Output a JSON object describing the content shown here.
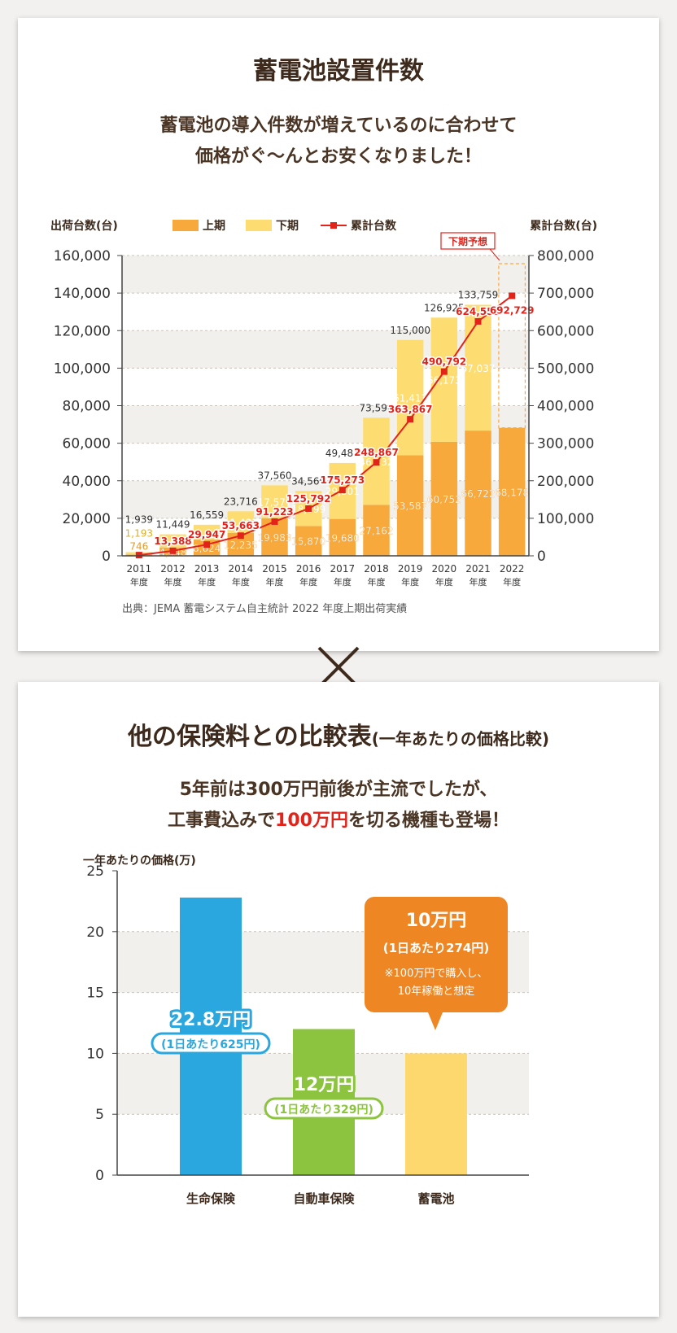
{
  "section1": {
    "title": "蓄電池設置件数",
    "subtitle_line1": "蓄電池の導入件数が増えているのに合わせて",
    "subtitle_line2": "価格がぐ〜んとお安くなりました！",
    "source": "出典：JEMA 蓄電システム自主統計 2022 年度上期出荷実績"
  },
  "section2": {
    "title": "他の保険料との比較表",
    "title_suffix": "(一年あたりの価格比較)",
    "subtitle_line1": "5年前は300万円前後が主流でしたが、",
    "subtitle_line2_pre": "工事費込みで",
    "subtitle_line2_highlight": "100万円",
    "subtitle_line2_post": "を切る機種も登場！",
    "callout_title": "10万円",
    "callout_sub": "(1日あたり274円)",
    "callout_note1": "※100万円で購入し、",
    "callout_note2": "10年稼働と想定"
  },
  "colors": {
    "first_half": "#f8a93c",
    "second_half": "#fddc72",
    "cumulative": "#e2231a",
    "insurance_life": "#2aa7de",
    "insurance_car": "#8cc43f",
    "battery": "#fdd86f",
    "callout": "#ef8624",
    "title_brown": "#3d2a1c"
  },
  "chart_data": [
    {
      "type": "bar",
      "stacked": true,
      "ylabel": "出荷台数(台)",
      "y2label": "累計台数(台)",
      "ylim": [
        0,
        160000
      ],
      "y2lim": [
        0,
        800000
      ],
      "yticks": [
        "160,000",
        "140,000",
        "120,000",
        "100,000",
        "80,000",
        "60,000",
        "40,000",
        "20,000",
        "0"
      ],
      "y2ticks": [
        "800,000",
        "700,000",
        "600,000",
        "500,000",
        "400,000",
        "300,000",
        "200,000",
        "100,000",
        "0"
      ],
      "legend": {
        "first": "上期",
        "second": "下期",
        "cumulative": "累計台数"
      },
      "forecast_label": "下期予想",
      "categories": [
        "2011",
        "2012",
        "2013",
        "2014",
        "2015",
        "2016",
        "2017",
        "2018",
        "2019",
        "2020",
        "2021",
        "2022"
      ],
      "category_suffix": "年度",
      "first_half": [
        746,
        4448,
        8624,
        12235,
        19983,
        15870,
        19680,
        27162,
        53587,
        60752,
        66722,
        68178
      ],
      "first_half_labels": [
        "746",
        "4,448",
        "8,624",
        "12,235",
        "19,983",
        "15,870",
        "19,680",
        "27,162",
        "53,587",
        "60,752",
        "66,722",
        "68,178"
      ],
      "second_half": [
        1193,
        7001,
        7935,
        11481,
        17577,
        18699,
        29801,
        46432,
        61413,
        66173,
        67037,
        null
      ],
      "second_half_labels": [
        "1,193",
        "7,001",
        "7,935",
        "11,481",
        "17,577",
        "18,699",
        "29,801",
        "46,432",
        "61,413",
        "66,173",
        "67,037",
        ""
      ],
      "totals": [
        1939,
        11449,
        16559,
        23716,
        37560,
        34569,
        49481,
        73594,
        115000,
        126925,
        133759,
        null
      ],
      "total_labels": [
        "1,939",
        "11,449",
        "16,559",
        "23,716",
        "37,560",
        "34,569",
        "49,481",
        "73,594",
        "115,000",
        "126,925",
        "133,759",
        ""
      ],
      "cumulative": [
        1939,
        13388,
        29947,
        53663,
        91223,
        125792,
        175273,
        248867,
        363867,
        490792,
        624551,
        692729
      ],
      "cumulative_labels": [
        "",
        "13,388",
        "29,947",
        "53,663",
        "91,223",
        "125,792",
        "175,273",
        "248,867",
        "363,867",
        "490,792",
        "624,551",
        "692,729"
      ]
    },
    {
      "type": "bar",
      "ylabel": "一年あたりの価格(万)",
      "ylim": [
        0,
        25
      ],
      "yticks": [
        "25",
        "20",
        "15",
        "10",
        "5",
        "0"
      ],
      "categories": [
        "生命保険",
        "自動車保険",
        "蓄電池"
      ],
      "values": [
        22.8,
        12,
        10
      ],
      "value_labels": [
        "22.8万円",
        "12万円",
        ""
      ],
      "sub_labels": [
        "(1日あたり625円)",
        "(1日あたり329円)",
        ""
      ]
    }
  ]
}
